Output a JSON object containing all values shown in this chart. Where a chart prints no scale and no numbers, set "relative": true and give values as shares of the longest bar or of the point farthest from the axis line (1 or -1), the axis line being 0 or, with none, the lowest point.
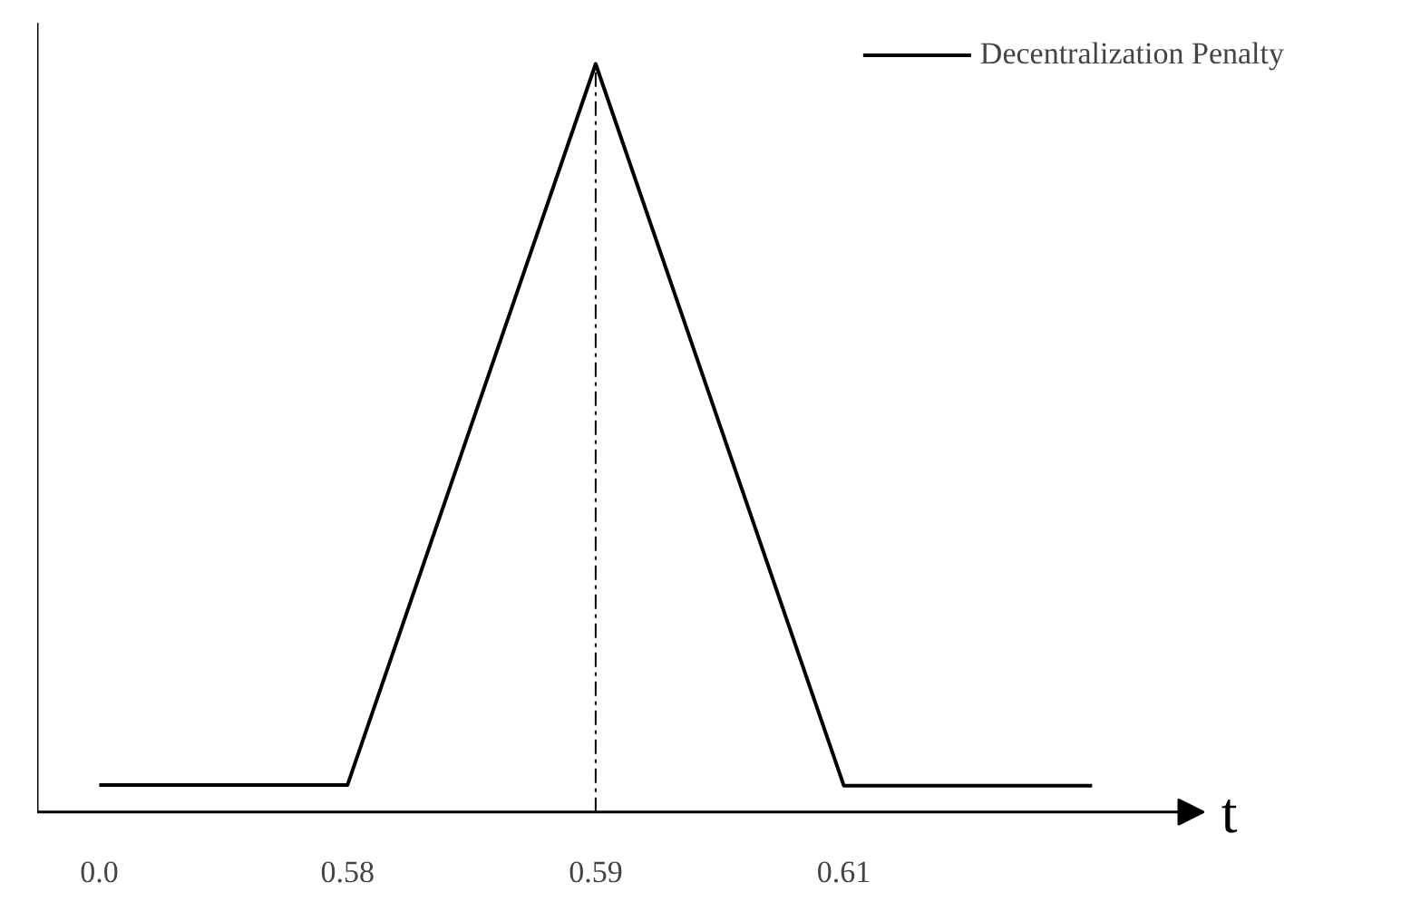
{
  "chart_data": {
    "type": "line",
    "relative": true,
    "categories": [
      "0.0",
      "0.58",
      "0.59",
      "0.61",
      null
    ],
    "series": [
      {
        "name": "Decentralization Penalty",
        "color": "#000000",
        "values": [
          0.036,
          0.036,
          1,
          0.035,
          0.035
        ]
      }
    ],
    "xlabel": "t",
    "legend": "top right",
    "marker": "none",
    "line_style": "solid",
    "grid": false,
    "ref_lines": [
      {
        "axis": "x",
        "value": "0.59",
        "color": "#000000",
        "line_style": "dashed"
      }
    ]
  }
}
